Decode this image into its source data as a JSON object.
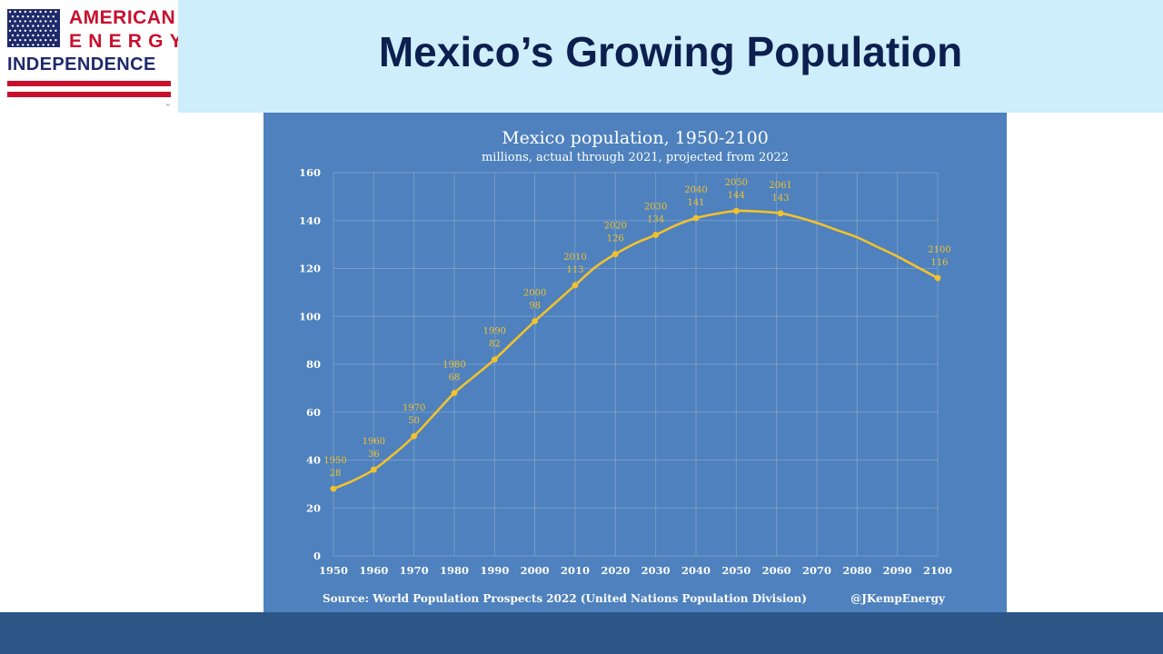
{
  "logo": {
    "line1": "AMERICAN",
    "line2": "ENERGY",
    "line3": "INDEPENDENCE",
    "tm": "™"
  },
  "header": {
    "title": "Mexico’s Growing Population"
  },
  "colors": {
    "title_band": "#cdeefa",
    "title_text": "#0d1f4f",
    "chart_bg": "#4e81bd",
    "line": "#f2c12e",
    "footer": "#2b5686",
    "logo_red": "#c8102e",
    "logo_navy": "#1f2a6b"
  },
  "chart_data": {
    "type": "line",
    "title": "Mexico population, 1950-2100",
    "subtitle": "millions, actual through 2021, projected from 2022",
    "xlabel": "",
    "ylabel": "",
    "xlim": [
      1950,
      2100
    ],
    "ylim": [
      0,
      160
    ],
    "x_ticks": [
      1950,
      1960,
      1970,
      1980,
      1990,
      2000,
      2010,
      2020,
      2030,
      2040,
      2050,
      2060,
      2070,
      2080,
      2090,
      2100
    ],
    "y_ticks": [
      0,
      20,
      40,
      60,
      80,
      100,
      120,
      140,
      160
    ],
    "grid": true,
    "series": [
      {
        "values_x": [
          1950,
          1955,
          1960,
          1965,
          1970,
          1975,
          1980,
          1985,
          1990,
          1995,
          2000,
          2005,
          2010,
          2015,
          2020,
          2025,
          2030,
          2035,
          2040,
          2045,
          2050,
          2055,
          2061,
          2065,
          2070,
          2075,
          2080,
          2085,
          2090,
          2095,
          2100
        ],
        "values_y": [
          28,
          31.5,
          36,
          42.5,
          50,
          59,
          68,
          75,
          82,
          90,
          98,
          105.5,
          113,
          120.5,
          126,
          130.5,
          134,
          138,
          141,
          142.8,
          144,
          143.8,
          143,
          141.5,
          139,
          136,
          133,
          129,
          125,
          120.5,
          116
        ]
      }
    ],
    "annotations": [
      {
        "year": "1950",
        "value": "28",
        "x": 1950,
        "y": 28
      },
      {
        "year": "1960",
        "value": "36",
        "x": 1960,
        "y": 36
      },
      {
        "year": "1970",
        "value": "50",
        "x": 1970,
        "y": 50
      },
      {
        "year": "1980",
        "value": "68",
        "x": 1980,
        "y": 68
      },
      {
        "year": "1990",
        "value": "82",
        "x": 1990,
        "y": 82
      },
      {
        "year": "2000",
        "value": "98",
        "x": 2000,
        "y": 98
      },
      {
        "year": "2010",
        "value": "113",
        "x": 2010,
        "y": 113
      },
      {
        "year": "2020",
        "value": "126",
        "x": 2020,
        "y": 126
      },
      {
        "year": "2030",
        "value": "134",
        "x": 2030,
        "y": 134
      },
      {
        "year": "2040",
        "value": "141",
        "x": 2040,
        "y": 141
      },
      {
        "year": "2050",
        "value": "144",
        "x": 2050,
        "y": 144
      },
      {
        "year": "2061",
        "value": "143",
        "x": 2061,
        "y": 143
      },
      {
        "year": "2100",
        "value": "116",
        "x": 2100,
        "y": 116
      }
    ],
    "source": "Source: World Population Prospects 2022 (United Nations Population Division)",
    "credit": "@JKempEnergy"
  }
}
